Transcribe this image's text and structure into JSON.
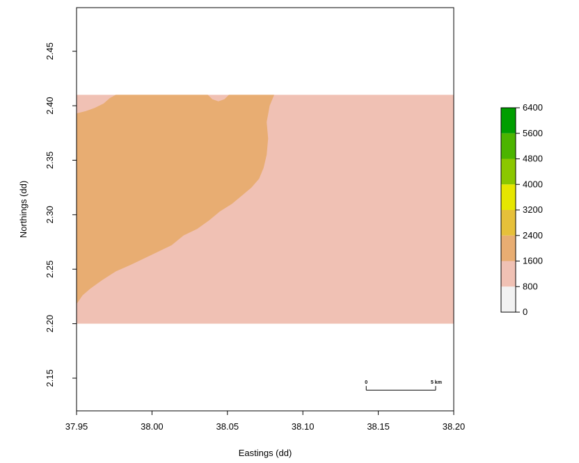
{
  "chart_data": {
    "type": "map",
    "xlabel": "Eastings (dd)",
    "ylabel": "Northings (dd)",
    "xlim": [
      37.95,
      38.2
    ],
    "ylim": [
      2.12,
      2.49
    ],
    "x_ticks": [
      {
        "value": 37.95,
        "label": "37.95"
      },
      {
        "value": 38.0,
        "label": "38.00"
      },
      {
        "value": 38.05,
        "label": "38.05"
      },
      {
        "value": 38.1,
        "label": "38.10"
      },
      {
        "value": 38.15,
        "label": "38.15"
      },
      {
        "value": 38.2,
        "label": "38.20"
      }
    ],
    "y_ticks": [
      {
        "value": 2.15,
        "label": "2.15"
      },
      {
        "value": 2.2,
        "label": "2.20"
      },
      {
        "value": 2.25,
        "label": "2.25"
      },
      {
        "value": 2.3,
        "label": "2.30"
      },
      {
        "value": 2.35,
        "label": "2.35"
      },
      {
        "value": 2.4,
        "label": "2.40"
      },
      {
        "value": 2.45,
        "label": "2.45"
      }
    ],
    "raster_extent": {
      "x": [
        37.95,
        38.2
      ],
      "y": [
        2.2,
        2.41
      ]
    },
    "background_class_color": "#f0c1b4",
    "region_class_color": "#e8ad72",
    "region_boundary": [
      [
        37.95,
        2.393
      ],
      [
        37.956,
        2.395
      ],
      [
        37.962,
        2.398
      ],
      [
        37.968,
        2.402
      ],
      [
        37.972,
        2.407
      ],
      [
        37.976,
        2.41
      ],
      [
        38.037,
        2.41
      ],
      [
        38.04,
        2.406
      ],
      [
        38.044,
        2.404
      ],
      [
        38.048,
        2.406
      ],
      [
        38.051,
        2.41
      ],
      [
        38.081,
        2.41
      ],
      [
        38.078,
        2.4
      ],
      [
        38.076,
        2.385
      ],
      [
        38.077,
        2.37
      ],
      [
        38.076,
        2.355
      ],
      [
        38.074,
        2.343
      ],
      [
        38.071,
        2.333
      ],
      [
        38.066,
        2.325
      ],
      [
        38.06,
        2.318
      ],
      [
        38.053,
        2.31
      ],
      [
        38.045,
        2.303
      ],
      [
        38.038,
        2.295
      ],
      [
        38.03,
        2.287
      ],
      [
        38.021,
        2.281
      ],
      [
        38.013,
        2.272
      ],
      [
        38.004,
        2.266
      ],
      [
        37.995,
        2.26
      ],
      [
        37.986,
        2.254
      ],
      [
        37.976,
        2.248
      ],
      [
        37.967,
        2.24
      ],
      [
        37.959,
        2.232
      ],
      [
        37.954,
        2.226
      ],
      [
        37.95,
        2.218
      ]
    ],
    "legend": {
      "breaks": [
        {
          "value": 0,
          "label": "0"
        },
        {
          "value": 800,
          "label": "800"
        },
        {
          "value": 1600,
          "label": "1600"
        },
        {
          "value": 2400,
          "label": "2400"
        },
        {
          "value": 3200,
          "label": "3200"
        },
        {
          "value": 4000,
          "label": "4000"
        },
        {
          "value": 4800,
          "label": "4800"
        },
        {
          "value": 5600,
          "label": "5600"
        },
        {
          "value": 6400,
          "label": "6400"
        }
      ],
      "colors": [
        "#f2f2f2",
        "#f0c1b4",
        "#e8ad72",
        "#e6c03a",
        "#e6e600",
        "#8bc700",
        "#4cb400",
        "#009e00"
      ]
    },
    "scale_bar": {
      "start_label": "0",
      "end_label": "5 km",
      "x_start": 38.142,
      "x_end": 38.188,
      "y": 2.139
    }
  }
}
